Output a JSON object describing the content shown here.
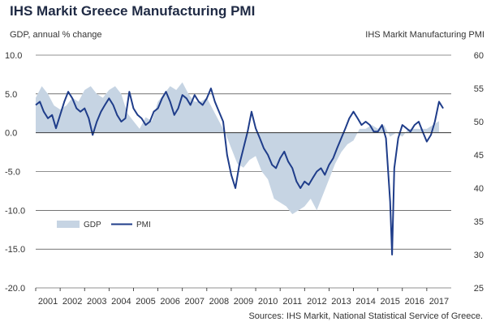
{
  "chart_data": {
    "type": "area+line",
    "title": "IHS Markit Greece Manufacturing PMI",
    "ylabel_left": "GDP, annual % change",
    "ylabel_right": "IHS Markit Manufacturing PMI",
    "source": "Sources: IHS Markit, National Statistical Service of Greece.",
    "left_axis": {
      "ylim": [
        -20,
        10
      ],
      "ticks": [
        "10.0",
        "5.0",
        "0.0",
        "-5.0",
        "-10.0",
        "-15.0",
        "-20.0"
      ]
    },
    "right_axis": {
      "ylim": [
        25,
        60
      ],
      "ticks": [
        "60",
        "55",
        "50",
        "45",
        "40",
        "35",
        "30",
        "25"
      ]
    },
    "x_ticks": [
      "2001",
      "2002",
      "2003",
      "2004",
      "2005",
      "2006",
      "2007",
      "2008",
      "2009",
      "2010",
      "2011",
      "2012",
      "2013",
      "2014",
      "2015",
      "2016",
      "2017"
    ],
    "grid": true,
    "legend_placement": "bottom-left",
    "series": [
      {
        "name": "GDP",
        "style": "area",
        "color": "#c6d4e3",
        "axis": "left",
        "x": [
          2001.0,
          2001.25,
          2001.5,
          2001.75,
          2002.0,
          2002.25,
          2002.5,
          2002.75,
          2003.0,
          2003.25,
          2003.5,
          2003.75,
          2004.0,
          2004.25,
          2004.5,
          2004.75,
          2005.0,
          2005.25,
          2005.5,
          2005.75,
          2006.0,
          2006.25,
          2006.5,
          2006.75,
          2007.0,
          2007.25,
          2007.5,
          2007.75,
          2008.0,
          2008.25,
          2008.5,
          2008.75,
          2009.0,
          2009.25,
          2009.5,
          2009.75,
          2010.0,
          2010.25,
          2010.5,
          2010.75,
          2011.0,
          2011.25,
          2011.5,
          2011.75,
          2012.0,
          2012.25,
          2012.5,
          2012.75,
          2013.0,
          2013.25,
          2013.5,
          2013.75,
          2014.0,
          2014.25,
          2014.5,
          2014.75,
          2015.0,
          2015.25,
          2015.5,
          2015.75,
          2016.0,
          2016.25,
          2016.5,
          2016.75,
          2017.0,
          2017.25,
          2017.5
        ],
        "values": [
          4.5,
          6.0,
          5.0,
          3.5,
          3.0,
          3.5,
          4.5,
          4.0,
          5.5,
          6.0,
          5.0,
          4.5,
          5.5,
          6.0,
          5.0,
          2.5,
          1.5,
          0.5,
          2.0,
          1.5,
          4.0,
          5.0,
          6.0,
          5.5,
          6.5,
          5.0,
          4.0,
          4.0,
          4.5,
          3.0,
          1.5,
          0.0,
          -2.0,
          -4.0,
          -4.5,
          -3.5,
          -3.0,
          -5.0,
          -6.0,
          -8.5,
          -9.0,
          -9.5,
          -10.5,
          -10.0,
          -9.5,
          -8.5,
          -10.0,
          -8.0,
          -6.0,
          -4.0,
          -2.5,
          -1.5,
          -1.0,
          0.5,
          0.5,
          1.0,
          0.5,
          1.0,
          -0.5,
          0.0,
          -0.5,
          0.5,
          0.5,
          0.5,
          0.5,
          1.0,
          1.5
        ]
      },
      {
        "name": "PMI",
        "style": "line",
        "color": "#1f3d8a",
        "axis": "right",
        "x": [
          2001.0,
          2001.17,
          2001.33,
          2001.5,
          2001.67,
          2001.83,
          2002.0,
          2002.17,
          2002.33,
          2002.5,
          2002.67,
          2002.83,
          2003.0,
          2003.17,
          2003.33,
          2003.5,
          2003.67,
          2003.83,
          2004.0,
          2004.17,
          2004.33,
          2004.5,
          2004.67,
          2004.83,
          2005.0,
          2005.17,
          2005.33,
          2005.5,
          2005.67,
          2005.83,
          2006.0,
          2006.17,
          2006.33,
          2006.5,
          2006.67,
          2006.83,
          2007.0,
          2007.17,
          2007.33,
          2007.5,
          2007.67,
          2007.83,
          2008.0,
          2008.17,
          2008.33,
          2008.5,
          2008.67,
          2008.83,
          2009.0,
          2009.17,
          2009.33,
          2009.5,
          2009.67,
          2009.83,
          2010.0,
          2010.17,
          2010.33,
          2010.5,
          2010.67,
          2010.83,
          2011.0,
          2011.17,
          2011.33,
          2011.5,
          2011.67,
          2011.83,
          2012.0,
          2012.17,
          2012.33,
          2012.5,
          2012.67,
          2012.83,
          2013.0,
          2013.17,
          2013.33,
          2013.5,
          2013.67,
          2013.83,
          2014.0,
          2014.17,
          2014.33,
          2014.5,
          2014.67,
          2014.83,
          2015.0,
          2015.17,
          2015.33,
          2015.5,
          2015.58,
          2015.67,
          2015.83,
          2016.0,
          2016.17,
          2016.33,
          2016.5,
          2016.67,
          2016.83,
          2017.0,
          2017.17,
          2017.33,
          2017.5,
          2017.67
        ],
        "values": [
          52.5,
          53.0,
          51.5,
          50.5,
          51.0,
          49.0,
          51.0,
          53.0,
          54.5,
          53.5,
          52.0,
          51.5,
          52.0,
          50.5,
          48.0,
          50.0,
          51.5,
          52.5,
          53.5,
          52.5,
          51.0,
          50.0,
          50.5,
          54.5,
          52.0,
          51.0,
          50.5,
          49.5,
          50.0,
          51.5,
          52.0,
          53.5,
          54.5,
          53.0,
          51.0,
          52.0,
          54.0,
          53.5,
          52.5,
          54.0,
          53.0,
          52.5,
          53.5,
          55.0,
          53.0,
          51.5,
          50.0,
          45.0,
          42.0,
          40.0,
          43.5,
          46.0,
          48.5,
          51.5,
          49.0,
          47.5,
          46.0,
          45.0,
          43.5,
          43.0,
          44.5,
          45.5,
          44.0,
          43.0,
          41.0,
          40.0,
          41.0,
          40.5,
          41.5,
          42.5,
          43.0,
          42.0,
          43.5,
          44.5,
          46.0,
          47.5,
          49.0,
          50.5,
          51.5,
          50.5,
          49.5,
          50.0,
          49.5,
          48.5,
          48.5,
          49.5,
          47.5,
          38.0,
          30.0,
          43.0,
          47.5,
          49.5,
          49.0,
          48.5,
          49.5,
          50.0,
          48.5,
          47.0,
          48.0,
          50.0,
          53.0,
          52.0
        ]
      }
    ]
  }
}
